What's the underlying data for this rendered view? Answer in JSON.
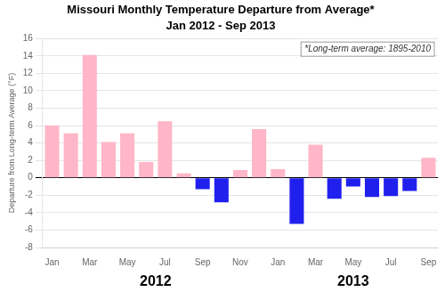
{
  "chart_data": {
    "type": "bar",
    "title": "Missouri Monthly Temperature Departure from Average*",
    "subtitle": "Jan 2012 - Sep 2013",
    "ylabel": "Departure from Long-term Average (°F)",
    "annotations": [
      "*Long-term average: 1895-2010",
      "2012",
      "2013"
    ],
    "categories": [
      "Jan",
      null,
      "Mar",
      null,
      "May",
      null,
      "Jul",
      null,
      "Sep",
      null,
      "Nov",
      null,
      "Jan",
      null,
      "Mar",
      null,
      "May",
      null,
      "Jul",
      null,
      "Sep"
    ],
    "values": [
      6.0,
      5.1,
      14.1,
      4.1,
      5.1,
      1.8,
      6.5,
      0.5,
      -1.3,
      -2.8,
      0.9,
      5.6,
      1.0,
      -5.3,
      3.8,
      -2.4,
      -1.0,
      -2.2,
      -2.1,
      -1.5,
      2.3
    ],
    "colors": [
      "#FFB6C8",
      "#FFB6C8",
      "#FFB6C8",
      "#FFB6C8",
      "#FFB6C8",
      "#FFB6C8",
      "#FFB6C8",
      "#FFB6C8",
      "#2020EE",
      "#2020EE",
      "#FFB6C8",
      "#FFB6C8",
      "#FFB6C8",
      "#2020EE",
      "#FFB6C8",
      "#2020EE",
      "#2020EE",
      "#2020EE",
      "#2020EE",
      "#2020EE",
      "#FFB6C8"
    ],
    "ylim": [
      -8.0,
      16.0
    ],
    "yticks": [
      16.0,
      14.0,
      12.0,
      10.0,
      8.0,
      6.0,
      4.0,
      2.0,
      0.0,
      -2.0,
      -4.0,
      -6.0,
      -8.0
    ],
    "grid": true
  }
}
